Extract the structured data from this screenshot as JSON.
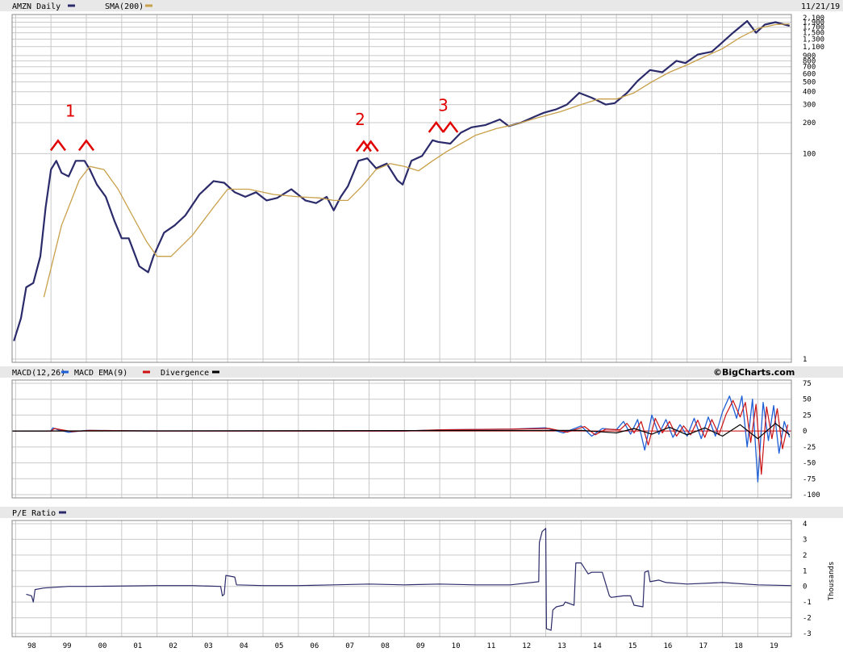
{
  "colors": {
    "price": "#2b2b6b",
    "sma": "#c8a04a",
    "macd": "#1f5fd6",
    "macd_ema": "#cc1111",
    "divergence": "#000000",
    "annotation": "#e00000",
    "panel_header": "#e8e8e8",
    "grid": "#c9c9c9"
  },
  "header": {
    "symbol_label": "AMZN Daily",
    "sma_label": "SMA(200)",
    "date": "11/21/19"
  },
  "macd_header": {
    "macd_label": "MACD(12,26)",
    "ema_label": "MACD EMA(9)",
    "div_label": "Divergence",
    "brand": "©BigCharts.com"
  },
  "pe_header": {
    "label": "P/E Ratio"
  },
  "annotations": [
    {
      "label": "1",
      "x": 1999.55,
      "y": 230
    },
    {
      "label": "2",
      "x": 2007.75,
      "y": 190
    },
    {
      "label": "3",
      "x": 2010.1,
      "y": 260
    }
  ],
  "chart_data": [
    {
      "type": "line",
      "title": "AMZN Daily",
      "xlabel": "",
      "ylabel": "",
      "scale": "log",
      "ylim": [
        1,
        2100
      ],
      "y_ticks": [
        1,
        100,
        200,
        300,
        400,
        500,
        600,
        700,
        800,
        900,
        1100,
        1300,
        1500,
        1700,
        1900,
        2100
      ],
      "y_tick_labels": [
        "1",
        "100",
        "200",
        "300",
        "400",
        "500",
        "600",
        "700",
        "800",
        "900",
        "1,100",
        "1,300",
        "1,500",
        "1,700",
        "1,900",
        "2,100"
      ],
      "x_ticks": [
        1998,
        1999,
        2000,
        2001,
        2002,
        2003,
        2004,
        2005,
        2006,
        2007,
        2008,
        2009,
        2010,
        2011,
        2012,
        2013,
        2014,
        2015,
        2016,
        2017,
        2018,
        2019
      ],
      "x_tick_labels": [
        "98",
        "99",
        "00",
        "01",
        "02",
        "03",
        "04",
        "05",
        "06",
        "07",
        "08",
        "09",
        "10",
        "11",
        "12",
        "13",
        "14",
        "15",
        "16",
        "17",
        "18",
        "19"
      ],
      "xlim": [
        1997.9,
        2019.95
      ],
      "series": [
        {
          "name": "AMZN Daily",
          "x": [
            1997.95,
            1998.15,
            1998.3,
            1998.5,
            1998.7,
            1998.85,
            1999.0,
            1999.15,
            1999.3,
            1999.5,
            1999.7,
            1999.95,
            2000.1,
            2000.3,
            2000.55,
            2000.8,
            2001.0,
            2001.2,
            2001.5,
            2001.75,
            2001.9,
            2002.2,
            2002.5,
            2002.8,
            2003.2,
            2003.6,
            2003.9,
            2004.2,
            2004.5,
            2004.8,
            2005.1,
            2005.4,
            2005.8,
            2006.2,
            2006.5,
            2006.8,
            2007.0,
            2007.2,
            2007.4,
            2007.7,
            2007.95,
            2008.2,
            2008.5,
            2008.8,
            2008.95,
            2009.2,
            2009.5,
            2009.8,
            2009.95,
            2010.3,
            2010.6,
            2010.9,
            2011.3,
            2011.7,
            2011.95,
            2012.3,
            2012.7,
            2012.95,
            2013.3,
            2013.6,
            2013.95,
            2014.3,
            2014.7,
            2014.95,
            2015.3,
            2015.6,
            2015.95,
            2016.3,
            2016.7,
            2016.95,
            2017.3,
            2017.7,
            2017.95,
            2018.3,
            2018.7,
            2018.95,
            2019.2,
            2019.5,
            2019.9
          ],
          "values": [
            1.5,
            2.5,
            5.0,
            5.5,
            10.0,
            30.0,
            70.0,
            85.0,
            65.0,
            60.0,
            85.0,
            85.0,
            70.0,
            50.0,
            38.0,
            22.0,
            15.0,
            15.0,
            8.0,
            7.0,
            10.0,
            17.0,
            20.0,
            25.0,
            40.0,
            54.0,
            52.0,
            42.0,
            38.0,
            42.0,
            35.0,
            37.0,
            45.0,
            35.0,
            33.0,
            38.0,
            28.0,
            38.0,
            48.0,
            85.0,
            90.0,
            72.0,
            80.0,
            55.0,
            50.0,
            85.0,
            95.0,
            135.0,
            130.0,
            125.0,
            160.0,
            180.0,
            190.0,
            215.0,
            185.0,
            200.0,
            230.0,
            250.0,
            270.0,
            300.0,
            390.0,
            350.0,
            300.0,
            310.0,
            390.0,
            510.0,
            650.0,
            620.0,
            800.0,
            760.0,
            920.0,
            980.0,
            1170.0,
            1500.0,
            1950.0,
            1500.0,
            1800.0,
            1900.0,
            1750.0
          ]
        },
        {
          "name": "SMA(200)",
          "x": [
            1998.8,
            1999.3,
            1999.8,
            2000.1,
            2000.5,
            2000.9,
            2001.3,
            2001.7,
            2002.0,
            2002.4,
            2003.0,
            2003.6,
            2004.0,
            2004.6,
            2005.3,
            2006.0,
            2006.6,
            2007.0,
            2007.4,
            2007.8,
            2008.2,
            2008.6,
            2009.0,
            2009.4,
            2009.8,
            2010.2,
            2010.6,
            2011.0,
            2011.6,
            2012.2,
            2012.8,
            2013.4,
            2014.0,
            2014.5,
            2015.0,
            2015.5,
            2016.0,
            2016.5,
            2017.0,
            2017.5,
            2018.0,
            2018.5,
            2019.0,
            2019.5,
            2019.9
          ],
          "values": [
            4.0,
            20.0,
            55.0,
            75.0,
            70.0,
            45.0,
            25.0,
            14.0,
            10.0,
            10.0,
            16.0,
            30.0,
            45.0,
            45.0,
            40.0,
            38.0,
            37.0,
            35.0,
            35.0,
            48.0,
            70.0,
            80.0,
            75.0,
            68.0,
            85.0,
            105.0,
            125.0,
            150.0,
            175.0,
            195.0,
            225.0,
            255.0,
            300.0,
            340.0,
            340.0,
            390.0,
            500.0,
            620.0,
            730.0,
            880.0,
            1050.0,
            1350.0,
            1650.0,
            1800.0,
            1830.0
          ]
        }
      ]
    },
    {
      "type": "line",
      "title": "MACD(12,26)",
      "xlabel": "",
      "ylabel": "",
      "ylim": [
        -100,
        75
      ],
      "y_ticks": [
        75,
        50,
        25,
        0,
        -25,
        -50,
        -75,
        -100
      ],
      "y_tick_labels": [
        "75",
        "50",
        "25",
        "0",
        "-25",
        "-50",
        "-75",
        "-100"
      ],
      "x_ticks": [
        1998,
        1999,
        2000,
        2001,
        2002,
        2003,
        2004,
        2005,
        2006,
        2007,
        2008,
        2009,
        2010,
        2011,
        2012,
        2013,
        2014,
        2015,
        2016,
        2017,
        2018,
        2019
      ],
      "xlim": [
        1997.9,
        2019.95
      ],
      "series": [
        {
          "name": "MACD(12,26)",
          "x": [
            1997.9,
            1999.0,
            1999.05,
            1999.2,
            1999.5,
            2000.0,
            2002.0,
            2006.0,
            2009.0,
            2010.0,
            2012.0,
            2013.0,
            2013.5,
            2014.0,
            2014.3,
            2014.6,
            2015.0,
            2015.2,
            2015.4,
            2015.6,
            2015.8,
            2016.0,
            2016.2,
            2016.4,
            2016.6,
            2016.8,
            2017.0,
            2017.2,
            2017.4,
            2017.6,
            2017.8,
            2018.0,
            2018.2,
            2018.4,
            2018.55,
            2018.7,
            2018.85,
            2019.0,
            2019.15,
            2019.3,
            2019.45,
            2019.6,
            2019.75,
            2019.9
          ],
          "values": [
            0,
            0,
            5,
            2,
            -2,
            1,
            0,
            0,
            0,
            2,
            3,
            5,
            -3,
            8,
            -8,
            4,
            2,
            15,
            -5,
            18,
            -30,
            25,
            -5,
            18,
            -10,
            10,
            -8,
            20,
            -12,
            22,
            -8,
            30,
            55,
            20,
            55,
            -25,
            50,
            -80,
            45,
            -15,
            40,
            -35,
            15,
            -10
          ]
        },
        {
          "name": "MACD EMA(9)",
          "x": [
            1997.9,
            1999.0,
            1999.1,
            1999.3,
            1999.6,
            2000.1,
            2002.0,
            2006.0,
            2009.0,
            2010.1,
            2012.0,
            2013.1,
            2013.6,
            2014.1,
            2014.4,
            2014.7,
            2015.1,
            2015.3,
            2015.5,
            2015.7,
            2015.9,
            2016.1,
            2016.3,
            2016.5,
            2016.7,
            2016.9,
            2017.1,
            2017.3,
            2017.5,
            2017.7,
            2017.9,
            2018.1,
            2018.3,
            2018.5,
            2018.65,
            2018.8,
            2018.95,
            2019.1,
            2019.25,
            2019.4,
            2019.55,
            2019.7,
            2019.85
          ],
          "values": [
            0,
            0,
            4,
            2,
            -1,
            1,
            0,
            0,
            0,
            2,
            3,
            4,
            -2,
            7,
            -6,
            3,
            2,
            12,
            -3,
            15,
            -22,
            20,
            -3,
            15,
            -8,
            8,
            -6,
            17,
            -10,
            18,
            -6,
            26,
            48,
            22,
            45,
            -18,
            42,
            -68,
            38,
            -12,
            35,
            -28,
            10
          ]
        },
        {
          "name": "Divergence",
          "x": [
            1997.9,
            2014.0,
            2015.0,
            2015.5,
            2016.0,
            2016.5,
            2017.0,
            2017.5,
            2018.0,
            2018.5,
            2019.0,
            2019.5,
            2019.9
          ],
          "values": [
            0,
            1,
            -3,
            4,
            -5,
            6,
            -6,
            5,
            -8,
            10,
            -12,
            12,
            -6
          ]
        }
      ]
    },
    {
      "type": "line",
      "title": "P/E Ratio",
      "xlabel": "",
      "ylabel": "Thousands",
      "ylim": [
        -3,
        4
      ],
      "y_ticks": [
        4,
        3,
        2,
        1,
        0,
        -1,
        -2,
        -3
      ],
      "y_tick_labels": [
        "4",
        "3",
        "2",
        "1",
        "0",
        "-1",
        "-2",
        "-3"
      ],
      "x_ticks": [
        1998,
        1999,
        2000,
        2001,
        2002,
        2003,
        2004,
        2005,
        2006,
        2007,
        2008,
        2009,
        2010,
        2011,
        2012,
        2013,
        2014,
        2015,
        2016,
        2017,
        2018,
        2019
      ],
      "x_tick_labels": [
        "98",
        "99",
        "00",
        "01",
        "02",
        "03",
        "04",
        "05",
        "06",
        "07",
        "08",
        "09",
        "10",
        "11",
        "12",
        "13",
        "14",
        "15",
        "16",
        "17",
        "18",
        "19"
      ],
      "xlim": [
        1997.9,
        2019.95
      ],
      "series": [
        {
          "name": "P/E Ratio",
          "x": [
            1998.3,
            1998.45,
            1998.5,
            1998.55,
            1998.8,
            1999.5,
            2000.0,
            2002.0,
            2003.0,
            2003.8,
            2003.85,
            2003.9,
            2003.95,
            2004.2,
            2004.25,
            2005.0,
            2006.0,
            2007.0,
            2008.0,
            2009.0,
            2010.0,
            2011.0,
            2012.0,
            2012.8,
            2012.82,
            2012.9,
            2013.0,
            2013.02,
            2013.15,
            2013.2,
            2013.3,
            2013.5,
            2013.55,
            2013.8,
            2013.85,
            2014.0,
            2014.2,
            2014.3,
            2014.6,
            2014.8,
            2014.85,
            2015.2,
            2015.4,
            2015.5,
            2015.75,
            2015.8,
            2015.9,
            2015.95,
            2016.2,
            2016.4,
            2017.0,
            2018.0,
            2019.0,
            2019.95
          ],
          "values": [
            -0.5,
            -0.6,
            -1.0,
            -0.2,
            -0.1,
            0.0,
            0.0,
            0.05,
            0.05,
            0.0,
            -0.6,
            -0.5,
            0.7,
            0.6,
            0.1,
            0.05,
            0.05,
            0.1,
            0.15,
            0.1,
            0.15,
            0.1,
            0.1,
            0.3,
            2.8,
            3.5,
            3.7,
            -2.7,
            -2.8,
            -1.5,
            -1.3,
            -1.2,
            -1.0,
            -1.2,
            1.5,
            1.5,
            0.8,
            0.9,
            0.9,
            -0.6,
            -0.7,
            -0.6,
            -0.6,
            -1.2,
            -1.3,
            0.9,
            1.0,
            0.3,
            0.4,
            0.25,
            0.15,
            0.25,
            0.1,
            0.05
          ]
        }
      ]
    }
  ]
}
